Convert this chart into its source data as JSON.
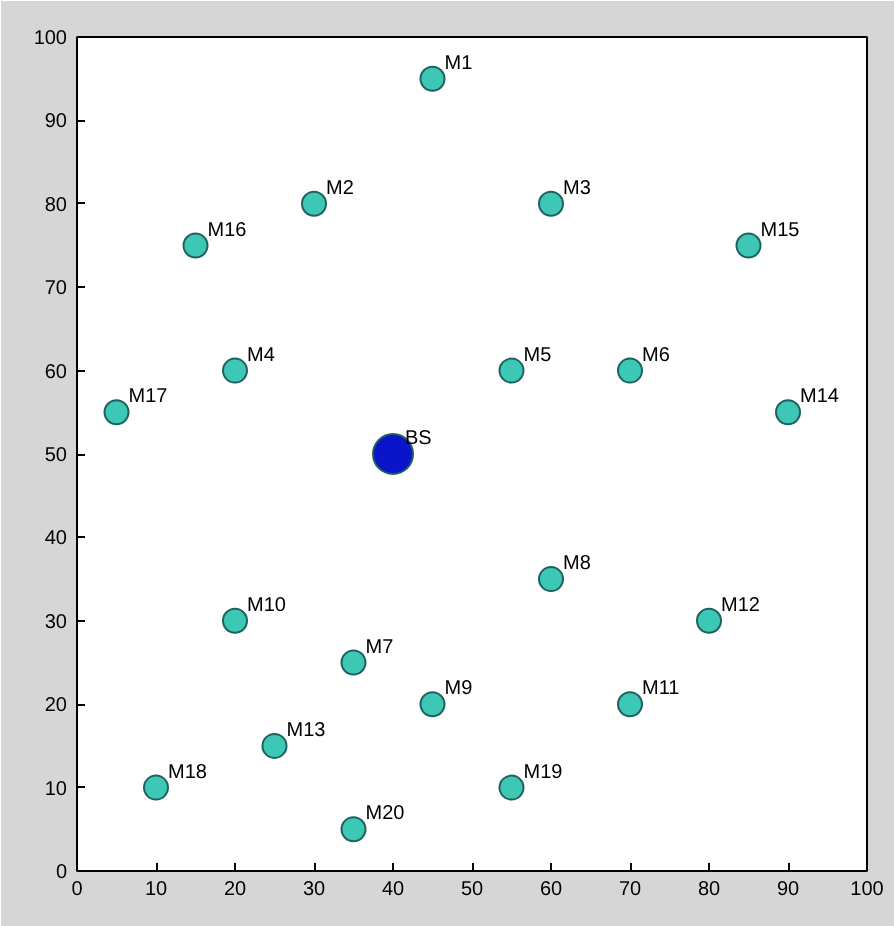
{
  "chart_data": {
    "type": "scatter",
    "xlim": [
      0,
      100
    ],
    "ylim": [
      0,
      100
    ],
    "xticks": [
      0,
      10,
      20,
      30,
      40,
      50,
      60,
      70,
      80,
      90,
      100
    ],
    "yticks": [
      0,
      10,
      20,
      30,
      40,
      50,
      60,
      70,
      80,
      90,
      100
    ],
    "grid": false,
    "marker": "circle",
    "series": [
      {
        "color": "#3cc8b4",
        "x": [
          45,
          30,
          60,
          15,
          85,
          20,
          55,
          70,
          5,
          90,
          60,
          20,
          80,
          35,
          45,
          70,
          25,
          10,
          55,
          35
        ],
        "values": [
          95,
          80,
          80,
          75,
          75,
          60,
          60,
          60,
          55,
          55,
          35,
          30,
          30,
          25,
          20,
          20,
          15,
          10,
          10,
          5
        ]
      },
      {
        "color": "#0a14c8",
        "x": [
          40
        ],
        "values": [
          50
        ]
      }
    ],
    "annotations": [
      {
        "text": "M1",
        "x": 45,
        "y": 95
      },
      {
        "text": "M2",
        "x": 30,
        "y": 80
      },
      {
        "text": "M3",
        "x": 60,
        "y": 80
      },
      {
        "text": "M16",
        "x": 15,
        "y": 75
      },
      {
        "text": "M15",
        "x": 85,
        "y": 75
      },
      {
        "text": "M4",
        "x": 20,
        "y": 60
      },
      {
        "text": "M5",
        "x": 55,
        "y": 60
      },
      {
        "text": "M6",
        "x": 70,
        "y": 60
      },
      {
        "text": "M17",
        "x": 5,
        "y": 55
      },
      {
        "text": "M14",
        "x": 90,
        "y": 55
      },
      {
        "text": "BS",
        "x": 40,
        "y": 50
      },
      {
        "text": "M8",
        "x": 60,
        "y": 35
      },
      {
        "text": "M10",
        "x": 20,
        "y": 30
      },
      {
        "text": "M12",
        "x": 80,
        "y": 30
      },
      {
        "text": "M7",
        "x": 35,
        "y": 25
      },
      {
        "text": "M9",
        "x": 45,
        "y": 20
      },
      {
        "text": "M11",
        "x": 70,
        "y": 20
      },
      {
        "text": "M13",
        "x": 25,
        "y": 15
      },
      {
        "text": "M18",
        "x": 10,
        "y": 10
      },
      {
        "text": "M19",
        "x": 55,
        "y": 10
      },
      {
        "text": "M20",
        "x": 35,
        "y": 5
      }
    ]
  }
}
